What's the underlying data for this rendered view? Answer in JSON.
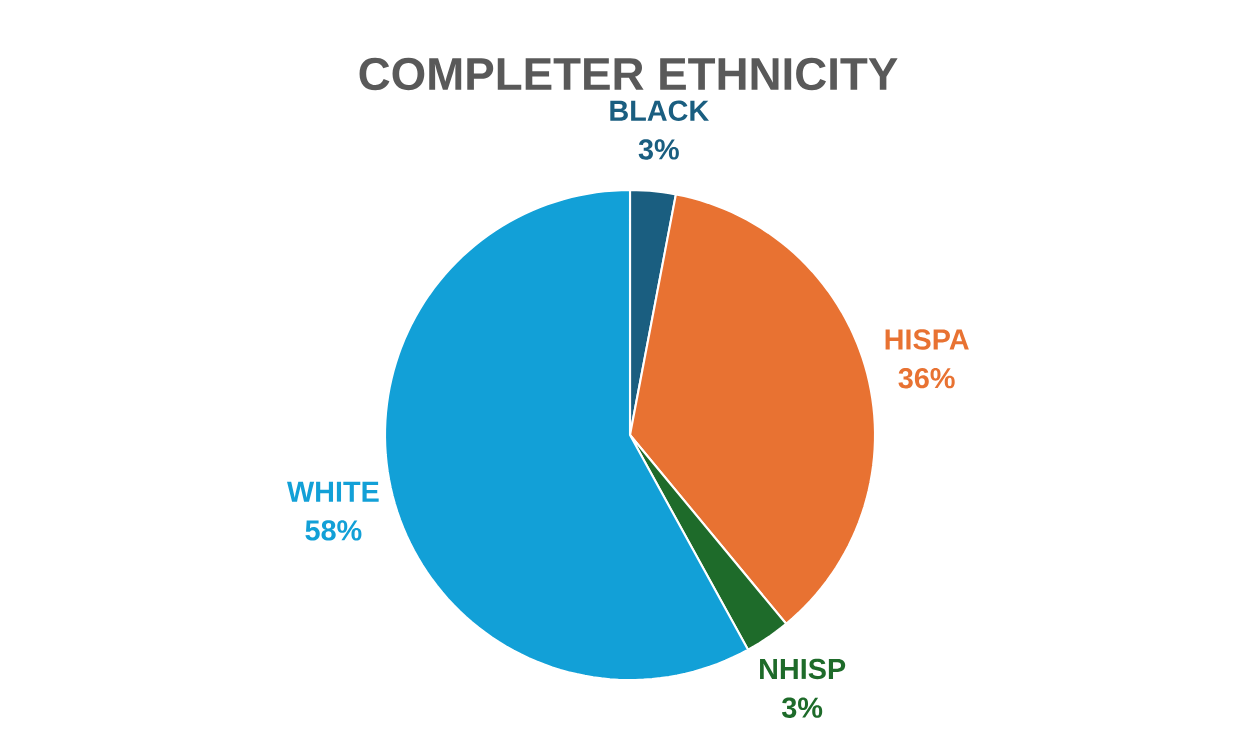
{
  "chart_data": {
    "type": "pie",
    "title": "COMPLETER ETHNICITY",
    "categories": [
      "BLACK",
      "HISPA",
      "NHISP",
      "WHITE"
    ],
    "values": [
      3,
      36,
      3,
      58
    ],
    "value_labels": [
      "3%",
      "36%",
      "3%",
      "58%"
    ],
    "colors": [
      "#1a5e80",
      "#e87232",
      "#1e6b2a",
      "#12a0d7"
    ]
  }
}
